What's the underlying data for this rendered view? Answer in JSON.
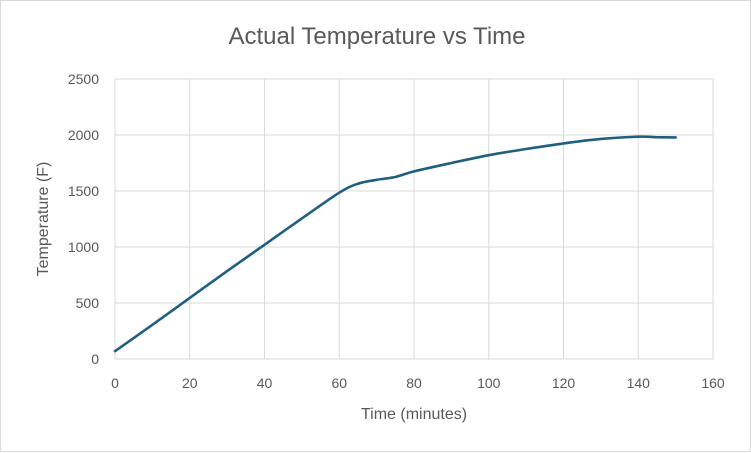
{
  "chart_data": {
    "type": "line",
    "title": "Actual Temperature vs Time",
    "xlabel": "Time (minutes)",
    "ylabel": "Temperature (F)",
    "xlim": [
      0,
      160
    ],
    "ylim": [
      0,
      2500
    ],
    "xticks": [
      0,
      20,
      40,
      60,
      80,
      100,
      120,
      140,
      160
    ],
    "yticks": [
      0,
      500,
      1000,
      1500,
      2000,
      2500
    ],
    "grid": true,
    "legend": "none",
    "color": "#1f5f7f",
    "series": [
      {
        "name": "Actual Temperature",
        "x": [
          0,
          10,
          20,
          30,
          40,
          50,
          60,
          65,
          70,
          75,
          80,
          90,
          100,
          110,
          120,
          130,
          140,
          145,
          150
        ],
        "y": [
          70,
          305,
          545,
          785,
          1020,
          1255,
          1485,
          1565,
          1600,
          1625,
          1675,
          1750,
          1820,
          1875,
          1925,
          1965,
          1985,
          1980,
          1978
        ]
      }
    ]
  }
}
